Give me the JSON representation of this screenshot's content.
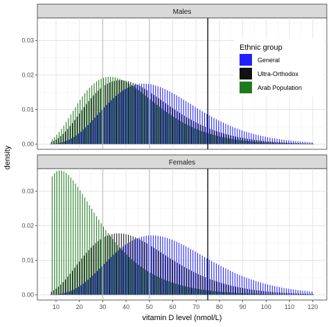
{
  "chart_data": {
    "type": "bar",
    "xlabel": "vitamin D level (nmol/L)",
    "ylabel": "density",
    "xlim": [
      2,
      126
    ],
    "ylim": [
      -0.0015,
      0.0365
    ],
    "x_ticks": [
      "10",
      "20",
      "30",
      "40",
      "50",
      "60",
      "70",
      "80",
      "90",
      "100",
      "110",
      "120"
    ],
    "y_ticks": [
      "0.00",
      "0.01",
      "0.02",
      "0.03"
    ],
    "reference_lines": {
      "grey": [
        30,
        50
      ],
      "black": [
        75
      ]
    },
    "grid": true,
    "legend": {
      "title": "Ethnic group",
      "position": "top-right inside Males panel",
      "entries": [
        "General",
        "Ultra-Orthodox",
        "Arab Population"
      ]
    },
    "colors": {
      "General": "#1f1fff",
      "Ultra-Orthodox": "#111111",
      "Arab Population": "#1f7a1f"
    },
    "panels": [
      {
        "name": "Males",
        "curves": {
          "General": {
            "model": "gamma",
            "shape": 7.0,
            "mean": 56,
            "peak": 0.0175
          },
          "Ultra-Orthodox": {
            "model": "gamma",
            "shape": 5.5,
            "mean": 46,
            "peak": 0.0185
          },
          "Arab Population": {
            "model": "gamma",
            "shape": 5.0,
            "mean": 41,
            "peak": 0.0195
          }
        }
      },
      {
        "name": "Females",
        "curves": {
          "General": {
            "model": "gamma",
            "shape": 7.0,
            "mean": 60,
            "peak": 0.0172
          },
          "Ultra-Orthodox": {
            "model": "gamma",
            "shape": 5.0,
            "mean": 46,
            "peak": 0.0178
          },
          "Arab Population": {
            "model": "gamma",
            "shape": 1.9,
            "mean": 24,
            "peak": 0.036
          }
        }
      }
    ],
    "bins": {
      "start": 8,
      "end": 120,
      "step": 1
    }
  }
}
